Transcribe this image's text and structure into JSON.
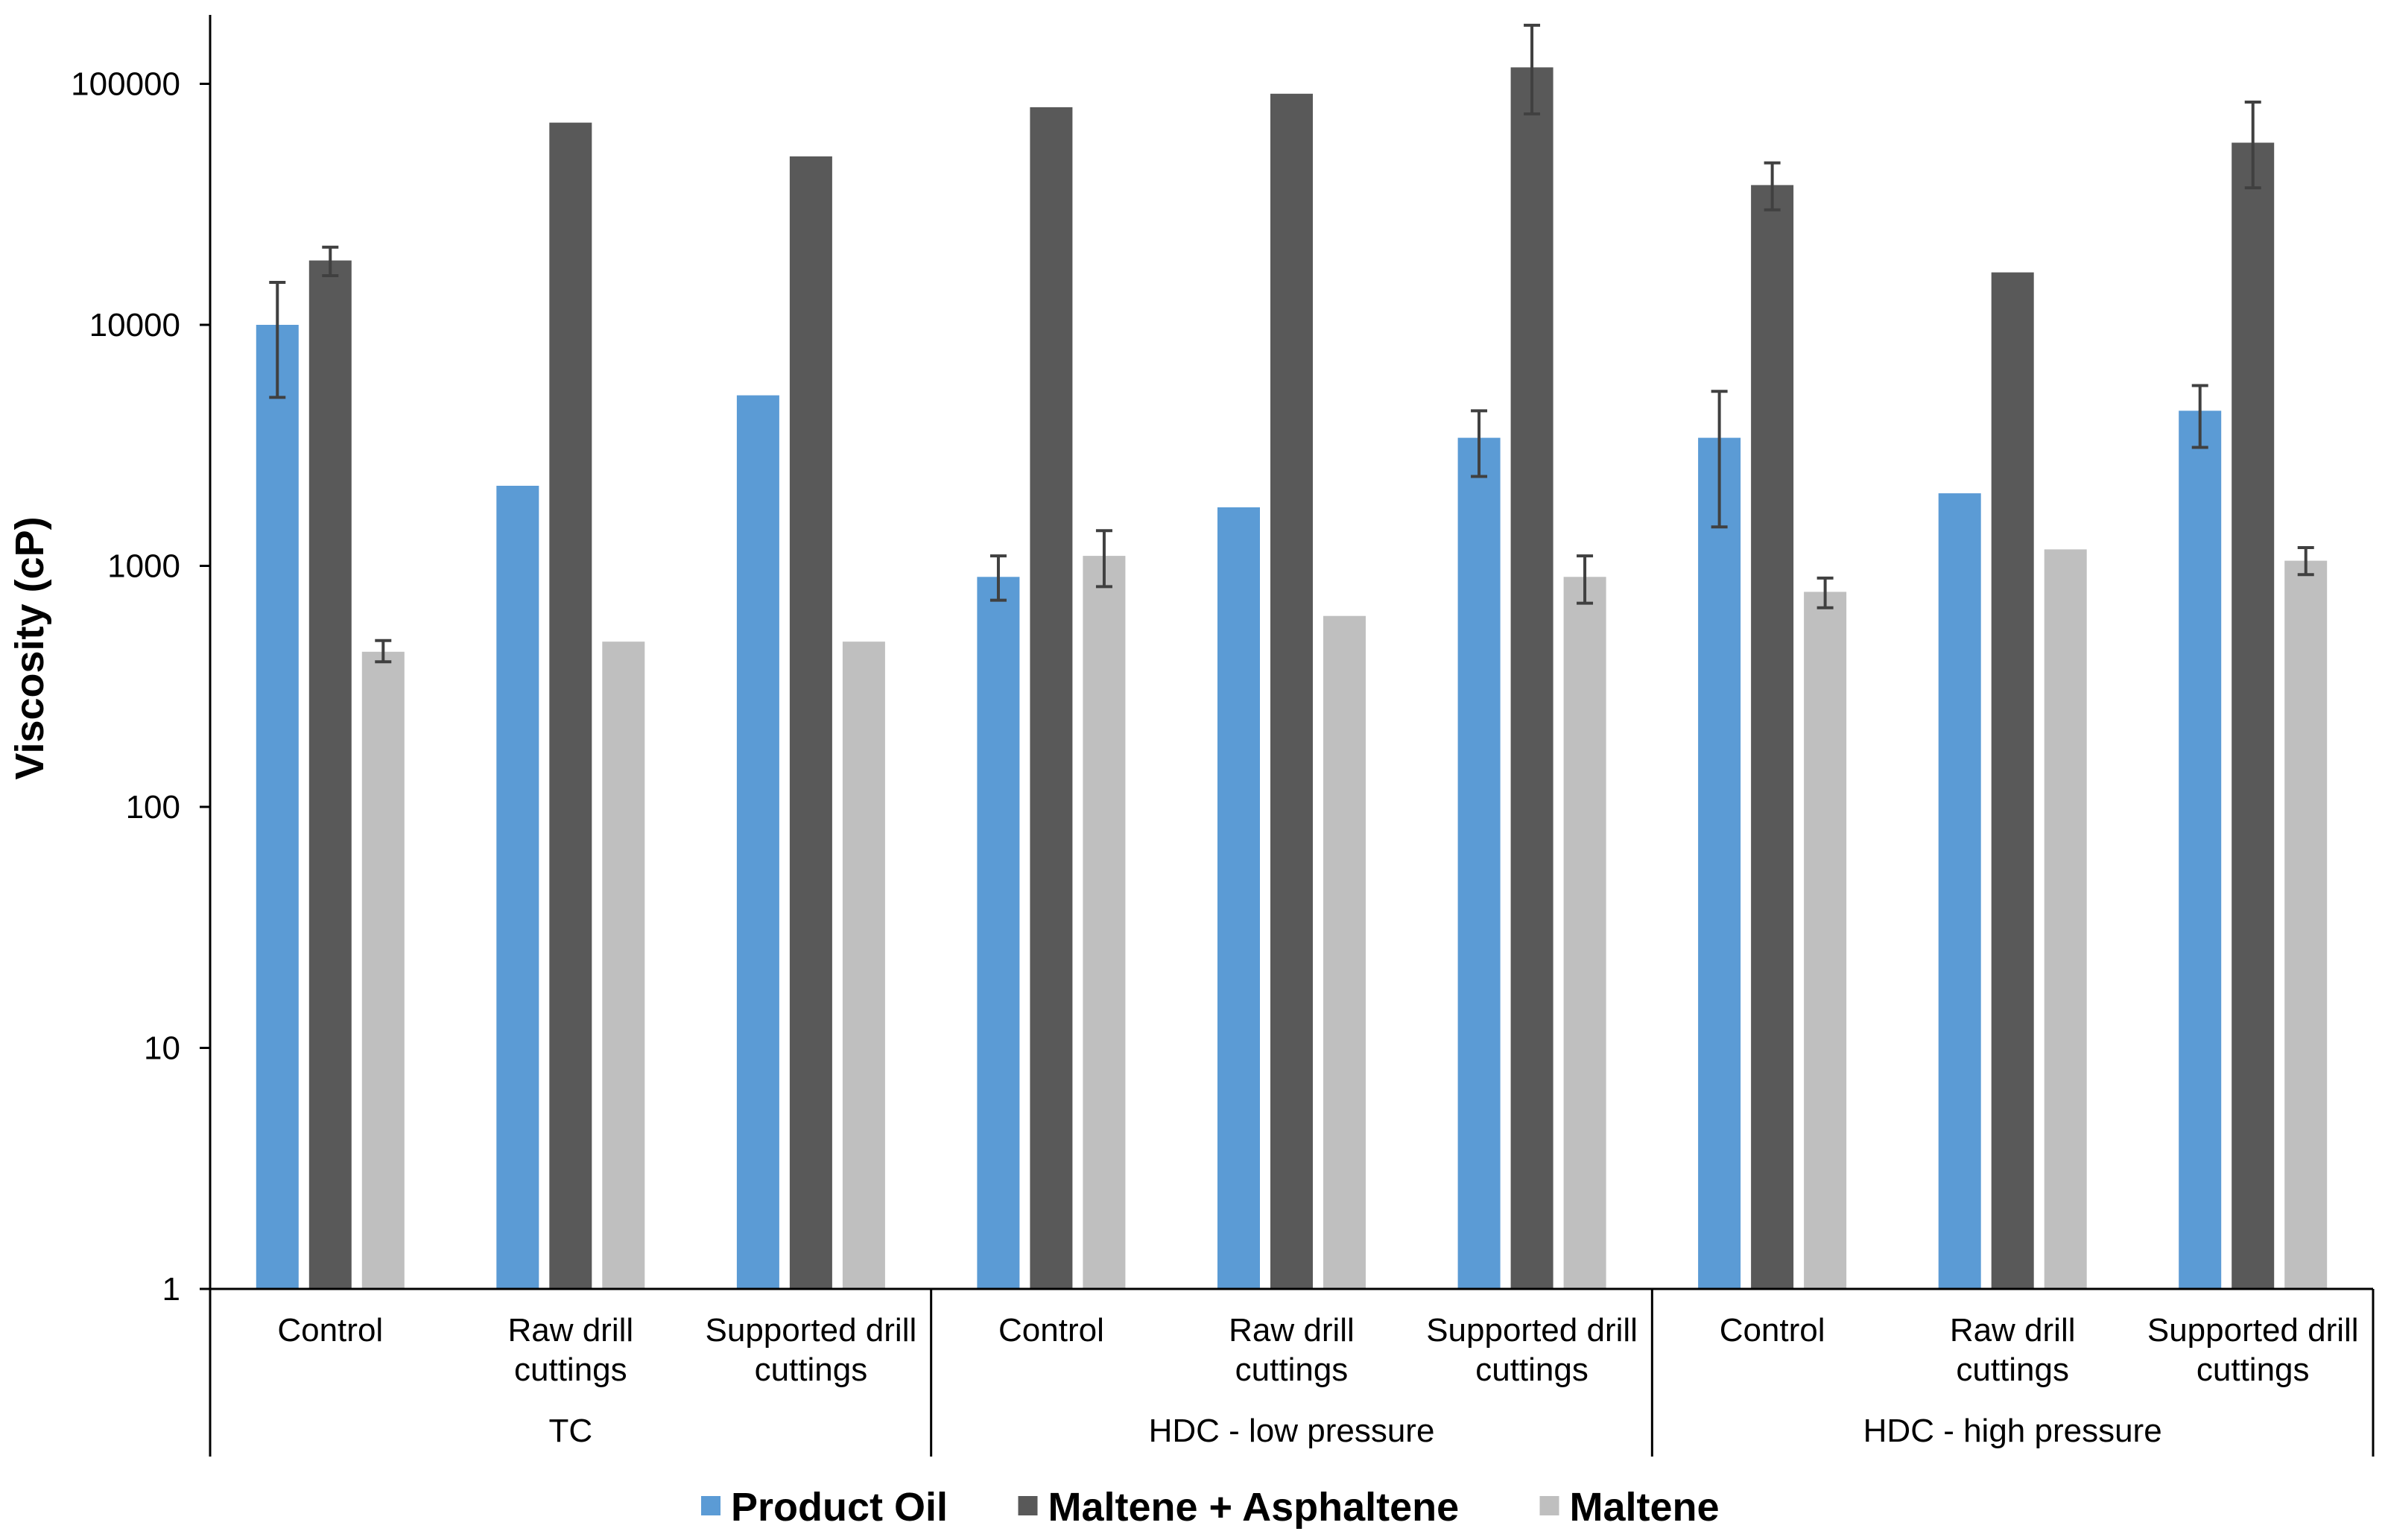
{
  "chart_data": {
    "type": "bar",
    "title": "",
    "xlabel": "",
    "ylabel": "Viscosity (cP)",
    "yscale": "log",
    "ylim": [
      1,
      200000
    ],
    "yticks": [
      "1",
      "10",
      "100",
      "1000",
      "10000",
      "100000"
    ],
    "grid": false,
    "legend_position": "bottom",
    "groups": [
      {
        "label": "TC",
        "categories": [
          "Control",
          "Raw drill cuttings",
          "Supported drill cuttings"
        ]
      },
      {
        "label": "HDC - low pressure",
        "categories": [
          "Control",
          "Raw drill cuttings",
          "Supported drill cuttings"
        ]
      },
      {
        "label": "HDC - high pressure",
        "categories": [
          "Control",
          "Raw drill cuttings",
          "Supported drill cuttings"
        ]
      }
    ],
    "category_lines": [
      [
        "Control"
      ],
      [
        "Raw drill",
        "cuttings"
      ],
      [
        "Supported drill",
        "cuttings"
      ],
      [
        "Control"
      ],
      [
        "Raw drill",
        "cuttings"
      ],
      [
        "Supported drill",
        "cuttings"
      ],
      [
        "Control"
      ],
      [
        "Raw drill",
        "cuttings"
      ],
      [
        "Supported drill",
        "cuttings"
      ]
    ],
    "series": [
      {
        "name": "Product Oil",
        "color": "#5b9bd5",
        "values": [
          10000,
          2150,
          5100,
          900,
          1750,
          3400,
          3400,
          2000,
          4400
        ],
        "error_low": [
          5000,
          null,
          null,
          720,
          null,
          2350,
          1450,
          null,
          3100
        ],
        "error_high": [
          15000,
          null,
          null,
          1100,
          null,
          4400,
          5300,
          null,
          5600
        ]
      },
      {
        "name": "Maltene + Asphaltene",
        "color": "#595959",
        "values": [
          18500,
          69000,
          50000,
          80000,
          91000,
          117000,
          38000,
          16500,
          57000
        ],
        "error_low": [
          16000,
          null,
          null,
          null,
          null,
          75000,
          30000,
          null,
          37000
        ],
        "error_high": [
          21000,
          null,
          null,
          null,
          null,
          175000,
          47000,
          null,
          84000
        ]
      },
      {
        "name": "Maltene",
        "color": "#bfbfbf",
        "values": [
          440,
          485,
          485,
          1100,
          620,
          900,
          780,
          1170,
          1050
        ],
        "error_low": [
          400,
          null,
          null,
          820,
          null,
          700,
          670,
          null,
          920
        ],
        "error_high": [
          490,
          null,
          null,
          1400,
          null,
          1100,
          890,
          null,
          1190
        ]
      }
    ]
  }
}
